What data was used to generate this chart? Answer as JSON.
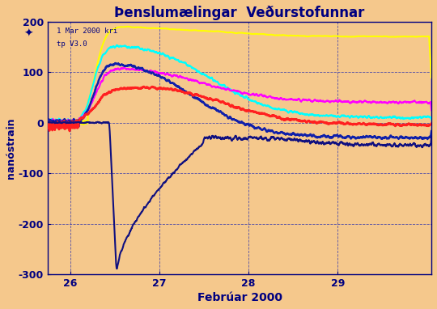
{
  "title": "Þenslumælingar  Veðurstofunnar",
  "xlabel": "Febrúar 2000",
  "ylabel": "nanóstrain",
  "background_color": "#F5C88C",
  "plot_bg_color": "#F5C88C",
  "grid_color": "#4444AA",
  "text_color": "#000080",
  "axis_color": "#000080",
  "ylim": [
    -300,
    200
  ],
  "xlim": [
    25.75,
    30.05
  ],
  "xticks": [
    26,
    27,
    28,
    29
  ],
  "yticks": [
    -300,
    -200,
    -100,
    0,
    100,
    200
  ],
  "watermark_line1": "1 Mar 2000 kri",
  "watermark_line2": "tp V3.0",
  "line_colors": [
    "#FFFF00",
    "#00FFFF",
    "#FF00FF",
    "#1020AA",
    "#FF2020",
    "#101080"
  ],
  "line_widths": [
    1.5,
    1.5,
    1.5,
    1.8,
    2.0,
    1.5
  ]
}
